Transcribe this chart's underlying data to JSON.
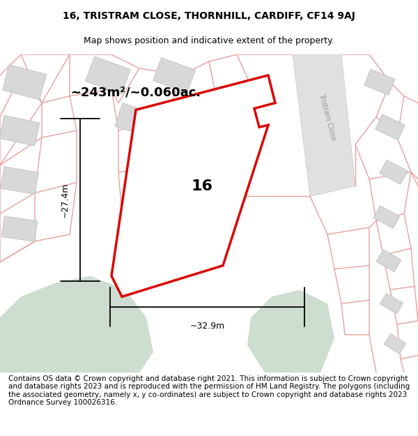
{
  "title_line1": "16, TRISTRAM CLOSE, THORNHILL, CARDIFF, CF14 9AJ",
  "title_line2": "Map shows position and indicative extent of the property.",
  "footer_text": "Contains OS data © Crown copyright and database right 2021. This information is subject to Crown copyright and database rights 2023 and is reproduced with the permission of HM Land Registry. The polygons (including the associated geometry, namely x, y co-ordinates) are subject to Crown copyright and database rights 2023 Ordnance Survey 100026316.",
  "area_label": "~243m²/~0.060ac.",
  "number_label": "16",
  "dim_width": "~32.9m",
  "dim_height": "~27.4m",
  "road_label": "Tristram Close",
  "map_bg": "#f5f5f5",
  "parcel_line_color": "#e8a0a0",
  "prop_outline_color": "#dd0000",
  "building_fill": "#d8d8d8",
  "building_edge": "#c0c0c0",
  "green_fill": "#cdddd0",
  "road_fill": "#e8e8e8",
  "title_fontsize": 10,
  "subtitle_fontsize": 9,
  "footer_fontsize": 7.5,
  "area_fontsize": 13,
  "number_fontsize": 16
}
